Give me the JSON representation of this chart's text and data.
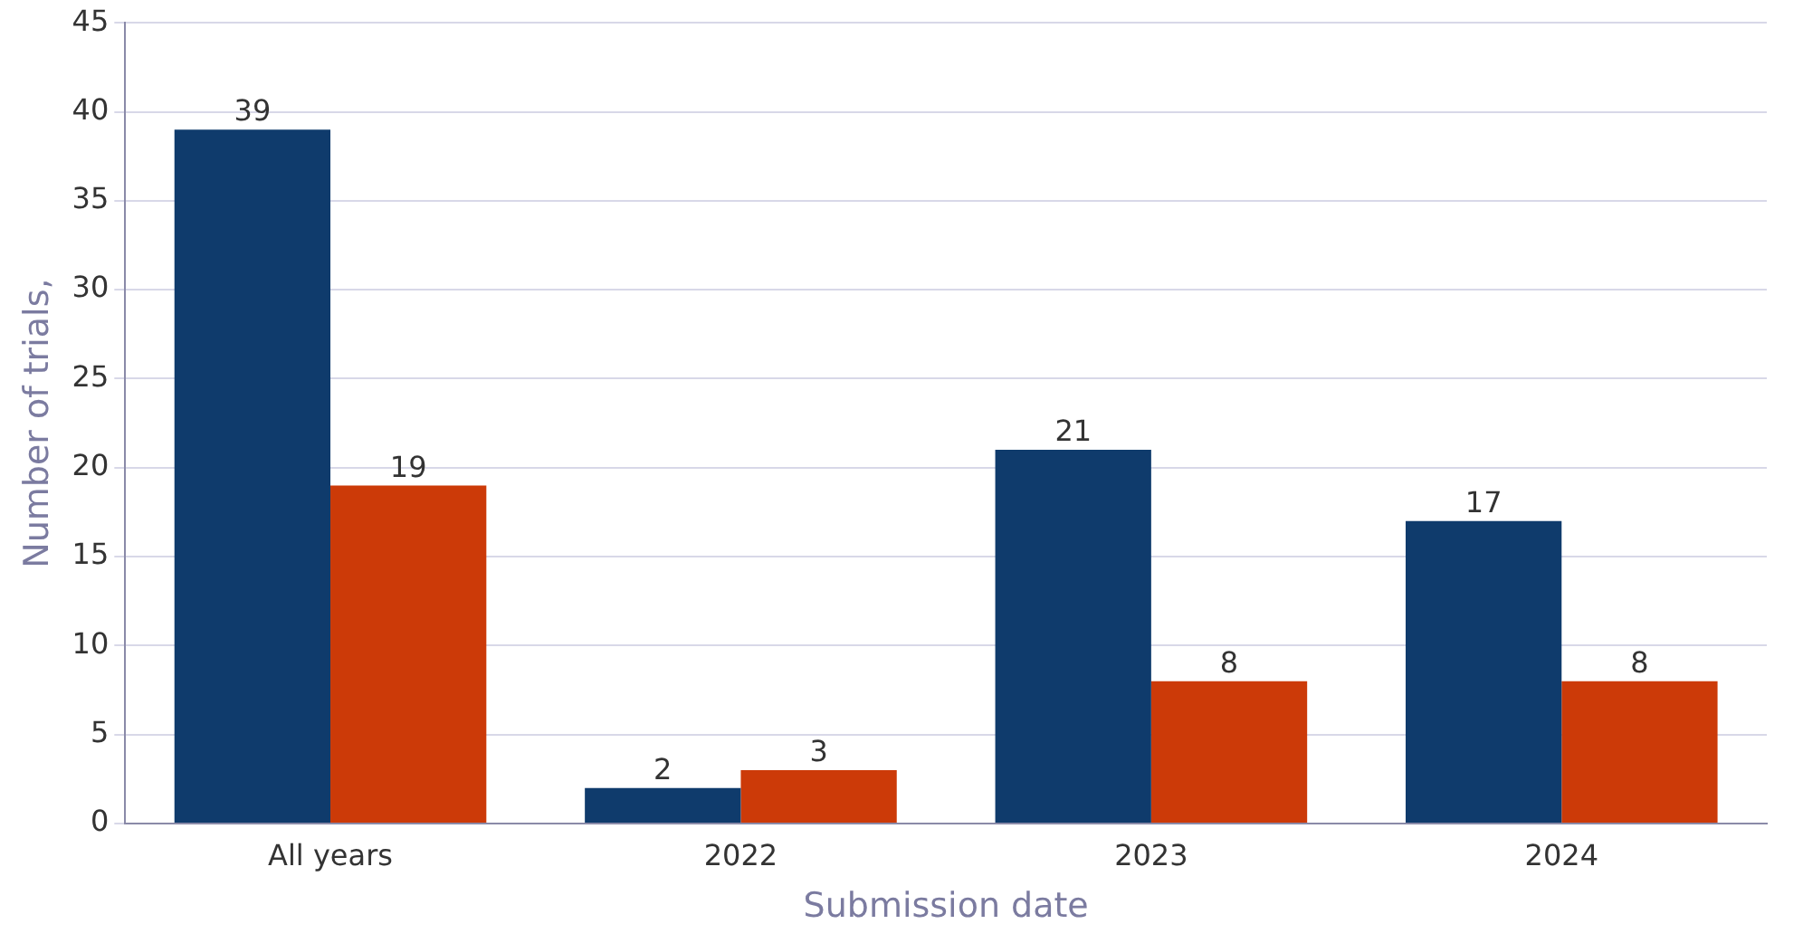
{
  "chart_data": {
    "type": "bar",
    "xlabel": "Submission date",
    "ylabel": "Number of trials,",
    "categories": [
      "All years",
      "2022",
      "2023",
      "2024"
    ],
    "series": [
      {
        "color": "#0f3b6c",
        "values": [
          39,
          2,
          21,
          17
        ]
      },
      {
        "color": "#cc3a08",
        "values": [
          19,
          3,
          8,
          8
        ]
      }
    ],
    "ylim": [
      0,
      45
    ],
    "yticks": [
      0,
      5,
      10,
      15,
      20,
      25,
      30,
      35,
      40,
      45
    ],
    "grid": "y",
    "data_labels": true
  }
}
